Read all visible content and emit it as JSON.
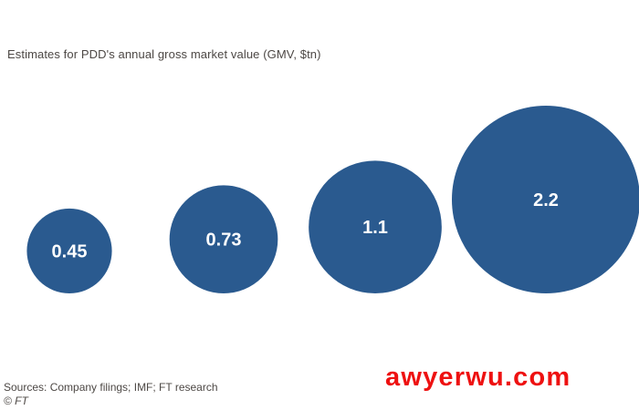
{
  "chart_data": {
    "type": "bubble",
    "title": "",
    "subtitle": "Estimates for PDD's annual gross market value (GMV, $tn)",
    "values": [
      0.45,
      0.73,
      1.1,
      2.2
    ],
    "data_labels": [
      "0.45",
      "0.73",
      "1.1",
      "2.2"
    ],
    "bubble_color": "#2a5a8f",
    "label_color": "#ffffff"
  },
  "footer": {
    "source": "Sources: Company filings; IMF; FT research",
    "credit": "© FT"
  },
  "watermark": "awyerwu.com"
}
